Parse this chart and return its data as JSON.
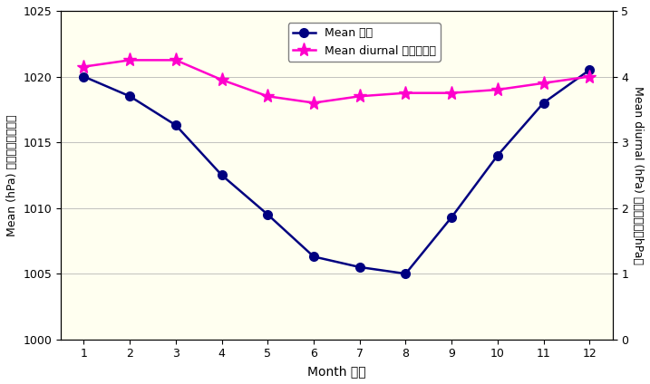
{
  "months": [
    1,
    2,
    3,
    4,
    5,
    6,
    7,
    8,
    9,
    10,
    11,
    12
  ],
  "mean_pressure": [
    1020.0,
    1018.5,
    1016.3,
    1012.5,
    1009.5,
    1006.3,
    1005.5,
    1005.0,
    1009.3,
    1014.0,
    1018.0,
    1020.5
  ],
  "mean_diurnal": [
    4.15,
    4.25,
    4.25,
    3.95,
    3.7,
    3.6,
    3.7,
    3.75,
    3.75,
    3.8,
    3.9,
    4.0
  ],
  "mean_color": "#000080",
  "diurnal_color": "#FF00CC",
  "bg_color": "#FFFFF0",
  "xlabel": "Month 月份",
  "ylabel_left": "Mean (hPa) 平均（百帕斯卡）",
  "ylabel_right": "Mean diurnal (hPa) 平均日較差（hPa）",
  "legend_mean": "Mean 平均",
  "legend_diurnal": "Mean diurnal 平均日較差",
  "ylim_left": [
    1000,
    1025
  ],
  "ylim_right": [
    0,
    5
  ],
  "yticks_left": [
    1000,
    1005,
    1010,
    1015,
    1020,
    1025
  ],
  "yticks_right": [
    0,
    1,
    2,
    3,
    4,
    5
  ],
  "xticks": [
    1,
    2,
    3,
    4,
    5,
    6,
    7,
    8,
    9,
    10,
    11,
    12
  ]
}
